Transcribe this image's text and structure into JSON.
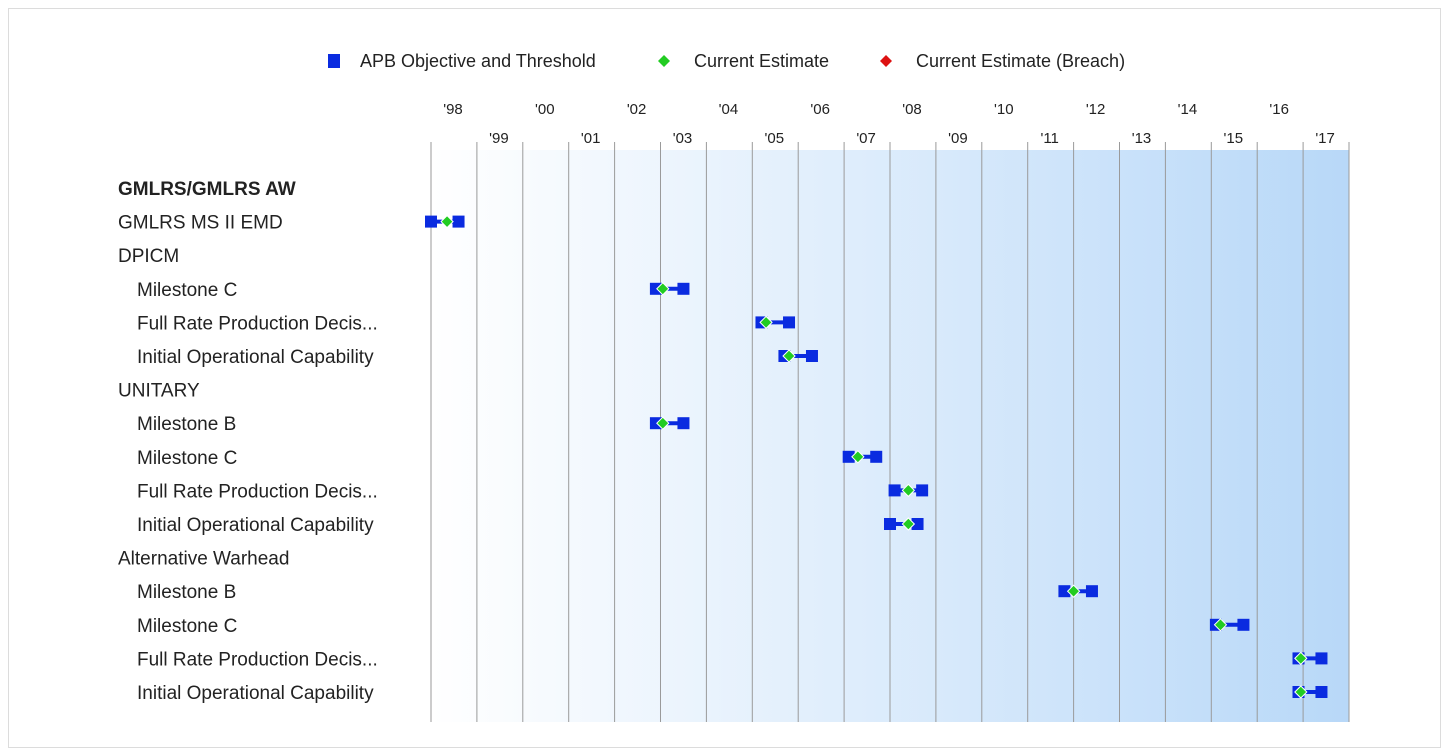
{
  "chart_data": {
    "type": "gantt",
    "x_axis": {
      "unit": "year",
      "range": [
        1998,
        2018
      ],
      "tick_labels_top": [
        "'98",
        "'00",
        "'02",
        "'04",
        "'06",
        "'08",
        "'10",
        "'12",
        "'14",
        "'16"
      ],
      "tick_labels_bottom": [
        "'99",
        "'01",
        "'03",
        "'05",
        "'07",
        "'09",
        "'11",
        "'13",
        "'15",
        "'17"
      ]
    },
    "legend": [
      {
        "label": "APB Objective and Threshold",
        "color": "#0a2be0",
        "shape": "square"
      },
      {
        "label": "Current Estimate",
        "color": "#22cc22",
        "shape": "diamond"
      },
      {
        "label": "Current Estimate (Breach)",
        "color": "#dd1111",
        "shape": "diamond"
      }
    ],
    "background_gradient": [
      "#ffffff",
      "#b8d8f8"
    ],
    "rows": [
      {
        "label": "GMLRS/GMLRS AW",
        "bold": true,
        "indent": 0
      },
      {
        "label": "GMLRS MS II EMD",
        "indent": 0,
        "objective": 1998.0,
        "threshold": 1998.6,
        "estimate": 1998.35
      },
      {
        "label": "DPICM",
        "indent": 0
      },
      {
        "label": "Milestone C",
        "indent": 1,
        "objective": 2002.9,
        "threshold": 2003.5,
        "estimate": 2003.05
      },
      {
        "label": "Full Rate Production Decis...",
        "indent": 1,
        "objective": 2005.2,
        "threshold": 2005.8,
        "estimate": 2005.3
      },
      {
        "label": "Initial Operational Capability",
        "indent": 1,
        "objective": 2005.7,
        "threshold": 2006.3,
        "estimate": 2005.8
      },
      {
        "label": "UNITARY",
        "indent": 0
      },
      {
        "label": "Milestone B",
        "indent": 1,
        "objective": 2002.9,
        "threshold": 2003.5,
        "estimate": 2003.05
      },
      {
        "label": "Milestone C",
        "indent": 1,
        "objective": 2007.1,
        "threshold": 2007.7,
        "estimate": 2007.3
      },
      {
        "label": "Full Rate Production Decis...",
        "indent": 1,
        "objective": 2008.1,
        "threshold": 2008.7,
        "estimate": 2008.4
      },
      {
        "label": "Initial Operational Capability",
        "indent": 1,
        "objective": 2008.0,
        "threshold": 2008.6,
        "estimate": 2008.4
      },
      {
        "label": "Alternative Warhead",
        "indent": 0
      },
      {
        "label": "Milestone B",
        "indent": 1,
        "objective": 2011.8,
        "threshold": 2012.4,
        "estimate": 2012.0
      },
      {
        "label": "Milestone C",
        "indent": 1,
        "objective": 2015.1,
        "threshold": 2015.7,
        "estimate": 2015.2
      },
      {
        "label": "Full Rate Production Decis...",
        "indent": 1,
        "objective": 2016.9,
        "threshold": 2017.4,
        "estimate": 2016.95
      },
      {
        "label": "Initial Operational Capability",
        "indent": 1,
        "objective": 2016.9,
        "threshold": 2017.4,
        "estimate": 2016.95
      }
    ]
  }
}
